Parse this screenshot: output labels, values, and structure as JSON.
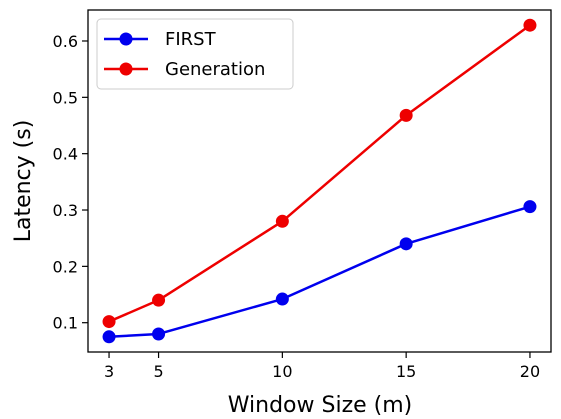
{
  "chart_data": {
    "type": "line",
    "title": "",
    "xlabel": "Window Size (m)",
    "ylabel": "Latency (s)",
    "x": [
      3,
      5,
      10,
      15,
      20
    ],
    "xticks": [
      "3",
      "5",
      "10",
      "15",
      "20"
    ],
    "yticks": [
      "0.1",
      "0.2",
      "0.3",
      "0.4",
      "0.5",
      "0.6"
    ],
    "ytick_values": [
      0.1,
      0.2,
      0.3,
      0.4,
      0.5,
      0.6
    ],
    "xlim": [
      2.15,
      20.85
    ],
    "ylim": [
      0.048,
      0.655
    ],
    "grid": false,
    "legend_position": "top-left",
    "series": [
      {
        "name": "FIRST",
        "color": "#0000ee",
        "marker": "circle",
        "values": [
          0.075,
          0.08,
          0.142,
          0.24,
          0.306
        ]
      },
      {
        "name": "Generation",
        "color": "#ee0000",
        "marker": "circle",
        "values": [
          0.102,
          0.14,
          0.28,
          0.468,
          0.628
        ]
      }
    ]
  }
}
